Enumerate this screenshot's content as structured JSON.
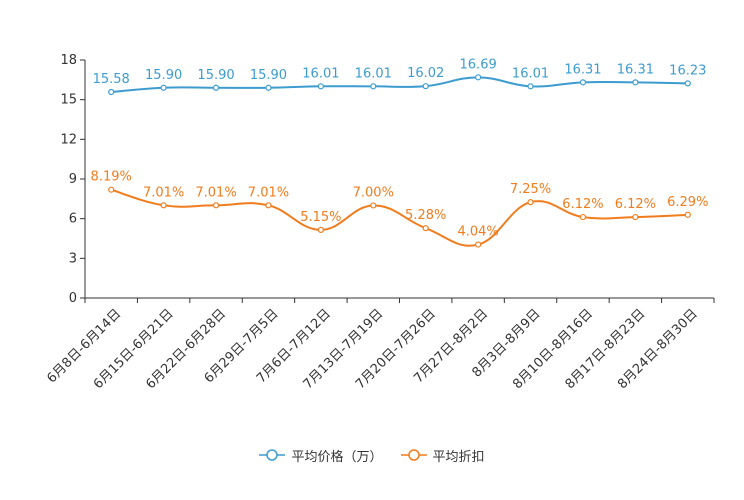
{
  "chart_data": {
    "type": "line",
    "title": "",
    "xlabel": "",
    "ylabel": "",
    "ylim": [
      0,
      18
    ],
    "yticks": [
      0,
      3,
      6,
      9,
      12,
      15,
      18
    ],
    "grid": false,
    "legend_position": "bottom-center",
    "categories": [
      "6月8日-6月14日",
      "6月15日-6月21日",
      "6月22日-6月28日",
      "6月29日-7月5日",
      "7月6日-7月12日",
      "7月13日-7月19日",
      "7月20日-7月26日",
      "7月27日-8月2日",
      "8月3日-8月9日",
      "8月10日-8月16日",
      "8月17日-8月23日",
      "8月24日-8月30日"
    ],
    "series": [
      {
        "name": "平均价格（万）",
        "color": "#3d9ccf",
        "values": [
          15.58,
          15.9,
          15.9,
          15.9,
          16.01,
          16.01,
          16.02,
          16.69,
          16.01,
          16.31,
          16.31,
          16.23
        ],
        "labels": [
          "15.58",
          "15.90",
          "15.90",
          "15.90",
          "16.01",
          "16.01",
          "16.02",
          "16.69",
          "16.01",
          "16.31",
          "16.31",
          "16.23"
        ]
      },
      {
        "name": "平均折扣",
        "color": "#f07c1d",
        "values": [
          8.19,
          7.01,
          7.01,
          7.01,
          5.15,
          7.0,
          5.28,
          4.04,
          7.25,
          6.12,
          6.12,
          6.29
        ],
        "labels": [
          "8.19%",
          "7.01%",
          "7.01%",
          "7.01%",
          "5.15%",
          "7.00%",
          "5.28%",
          "4.04%",
          "7.25%",
          "6.12%",
          "6.12%",
          "6.29%"
        ]
      }
    ]
  }
}
